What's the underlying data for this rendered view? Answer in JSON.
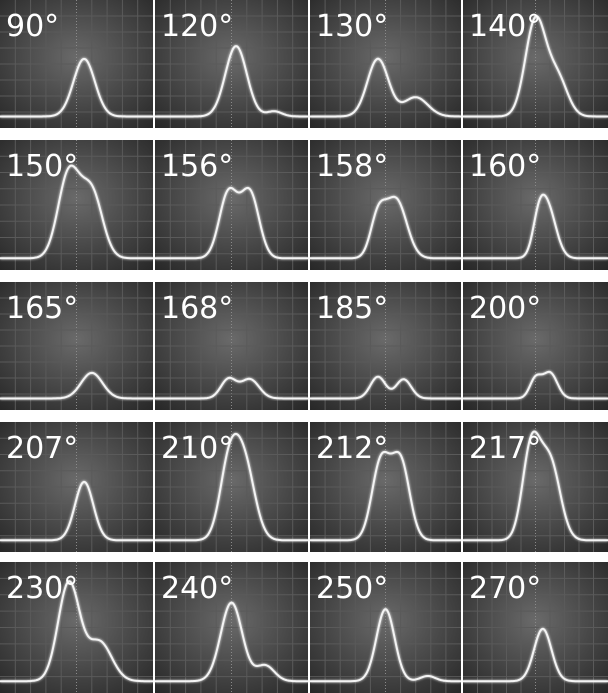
{
  "panels": [
    {
      "label": "90°"
    },
    {
      "label": "120°"
    },
    {
      "label": "130°"
    },
    {
      "label": "140°"
    },
    {
      "label": "150°"
    },
    {
      "label": "156°"
    },
    {
      "label": "158°"
    },
    {
      "label": "160°"
    },
    {
      "label": "165°"
    },
    {
      "label": "168°"
    },
    {
      "label": "185°"
    },
    {
      "label": "200°"
    },
    {
      "label": "207°"
    },
    {
      "label": "210°"
    },
    {
      "label": "212°"
    },
    {
      "label": "217°"
    },
    {
      "label": "230°"
    },
    {
      "label": "240°"
    },
    {
      "label": "250°"
    },
    {
      "label": "270°"
    }
  ]
}
